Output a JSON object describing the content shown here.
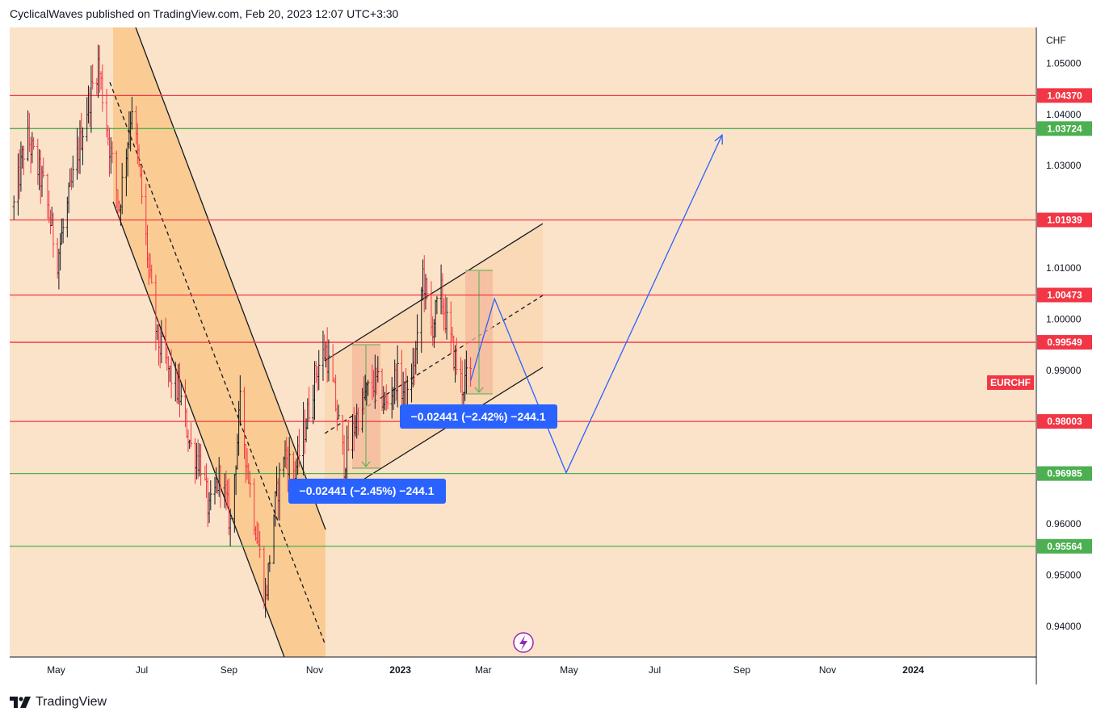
{
  "header": {
    "text": "CyclicalWaves published on TradingView.com, Feb 20, 2023 12:07 UTC+3:30"
  },
  "footer": {
    "brand": "TradingView"
  },
  "colors": {
    "background": "#fbe3c9",
    "channel_fill": "#f9c88a",
    "rect_fill": "#f6cfb6",
    "red_level": "#f23645",
    "green_level": "#4caf50",
    "projection": "#2962ff",
    "measure_bg": "#2962ff",
    "bull_bar": "#131722",
    "bear_bar": "#f23645",
    "symbol_tag": "#f23645"
  },
  "chart_data": {
    "type": "ohlc",
    "symbol": "EURCHF",
    "currency": "CHF",
    "x_labels": [
      "May",
      "Jul",
      "Sep",
      "Nov",
      "2023",
      "Mar",
      "May",
      "Jul",
      "Sep",
      "Nov",
      "2024"
    ],
    "y_ticks": [
      "1.05000",
      "1.04000",
      "1.03000",
      "1.01000",
      "1.00000",
      "0.99000",
      "0.96000",
      "0.95000",
      "0.94000"
    ],
    "ylim": [
      0.934,
      1.057
    ],
    "levels": [
      {
        "price": 1.0437,
        "label": "1.04370",
        "kind": "red"
      },
      {
        "price": 1.03724,
        "label": "1.03724",
        "kind": "green"
      },
      {
        "price": 1.01939,
        "label": "1.01939",
        "kind": "red"
      },
      {
        "price": 1.00473,
        "label": "1.00473",
        "kind": "red"
      },
      {
        "price": 0.99549,
        "label": "0.99549",
        "kind": "red"
      },
      {
        "price": 0.98003,
        "label": "0.98003",
        "kind": "red"
      },
      {
        "price": 0.96985,
        "label": "0.96985",
        "kind": "green"
      },
      {
        "price": 0.95564,
        "label": "0.95564",
        "kind": "green"
      }
    ],
    "measurements": [
      {
        "text": "−0.02441 (−2.45%) −244.1"
      },
      {
        "text": "−0.02441 (−2.42%) −244.1"
      }
    ],
    "price_path": [
      [
        "2022-04-01",
        1.022
      ],
      [
        "2022-04-10",
        1.036
      ],
      [
        "2022-04-22",
        1.026
      ],
      [
        "2022-05-02",
        1.012
      ],
      [
        "2022-05-12",
        1.026
      ],
      [
        "2022-05-22",
        1.04
      ],
      [
        "2022-05-31",
        1.05
      ],
      [
        "2022-06-08",
        1.034
      ],
      [
        "2022-06-15",
        1.022
      ],
      [
        "2022-06-24",
        1.042
      ],
      [
        "2022-07-01",
        1.024
      ],
      [
        "2022-07-07",
        1.007
      ],
      [
        "2022-07-12",
        0.996
      ],
      [
        "2022-07-20",
        0.99
      ],
      [
        "2022-07-28",
        0.985
      ],
      [
        "2022-08-05",
        0.975
      ],
      [
        "2022-08-12",
        0.972
      ],
      [
        "2022-08-18",
        0.962
      ],
      [
        "2022-08-26",
        0.97
      ],
      [
        "2022-09-02",
        0.96
      ],
      [
        "2022-09-09",
        0.983
      ],
      [
        "2022-09-17",
        0.965
      ],
      [
        "2022-09-22",
        0.956
      ],
      [
        "2022-09-27",
        0.945
      ],
      [
        "2022-10-03",
        0.962
      ],
      [
        "2022-10-10",
        0.974
      ],
      [
        "2022-10-18",
        0.97
      ],
      [
        "2022-10-26",
        0.98
      ],
      [
        "2022-11-02",
        0.99
      ],
      [
        "2022-11-09",
        0.994
      ],
      [
        "2022-11-15",
        0.985
      ],
      [
        "2022-11-22",
        0.972
      ],
      [
        "2022-11-30",
        0.98
      ],
      [
        "2022-12-07",
        0.985
      ],
      [
        "2022-12-14",
        0.988
      ],
      [
        "2022-12-22",
        0.983
      ],
      [
        "2022-12-29",
        0.989
      ],
      [
        "2023-01-06",
        0.984
      ],
      [
        "2023-01-13",
        0.995
      ],
      [
        "2023-01-17",
        1.009
      ],
      [
        "2023-01-23",
        0.998
      ],
      [
        "2023-01-30",
        1.005
      ],
      [
        "2023-02-03",
        0.999
      ],
      [
        "2023-02-08",
        0.993
      ],
      [
        "2023-02-14",
        0.987
      ],
      [
        "2023-02-20",
        0.989
      ]
    ],
    "projection_path": [
      [
        "2023-02-20",
        0.988
      ],
      [
        "2023-03-09",
        1.004
      ],
      [
        "2023-04-29",
        0.97
      ],
      [
        "2023-08-18",
        1.036
      ]
    ]
  }
}
